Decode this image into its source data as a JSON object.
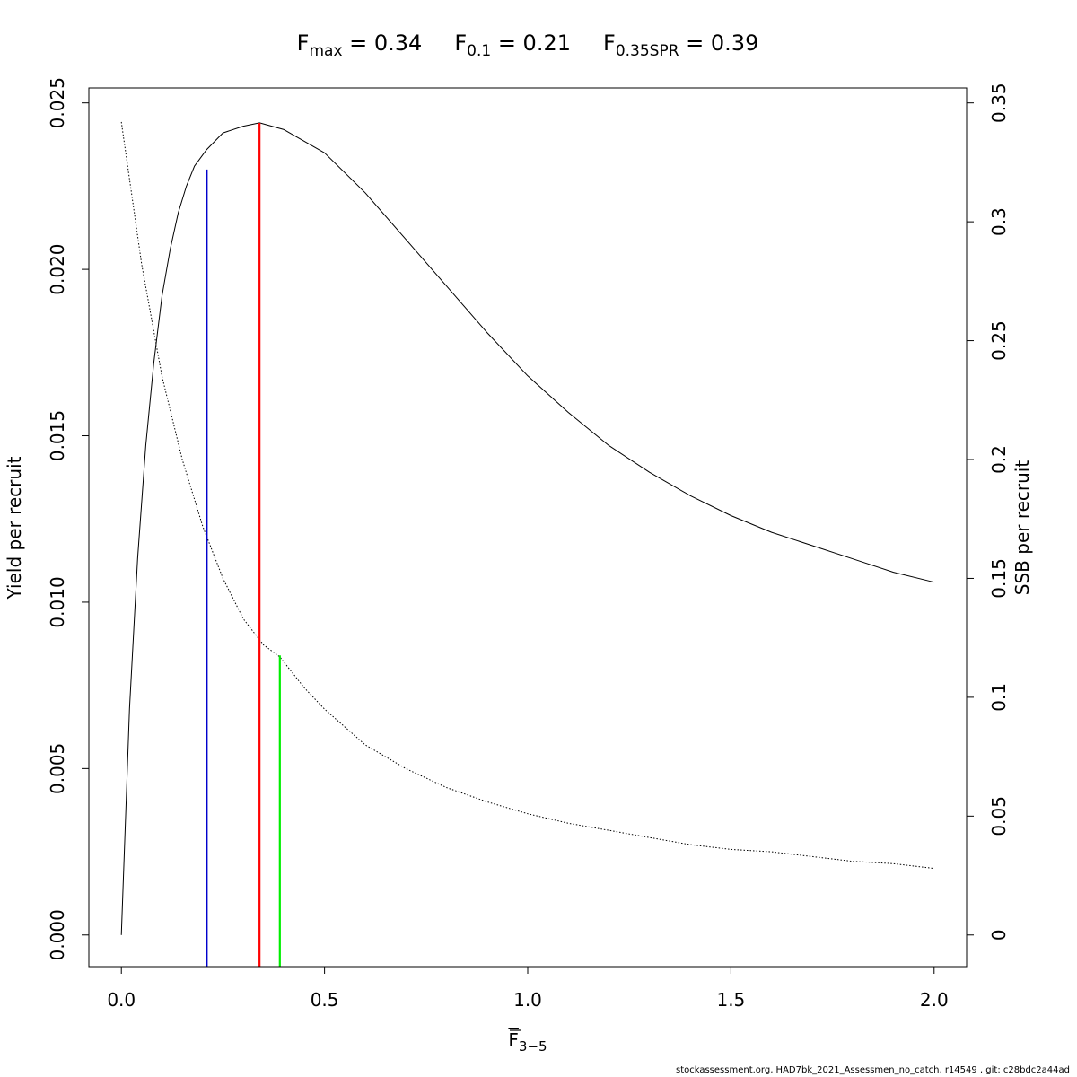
{
  "chart_data": {
    "type": "line",
    "title_parts": [
      {
        "base": "F",
        "sub": "max",
        "rest": " = 0.34"
      },
      {
        "base": "F",
        "sub": "0.1",
        "rest": " = 0.21"
      },
      {
        "base": "F",
        "sub": "0.35SPR",
        "rest": " = 0.39"
      }
    ],
    "xlabel": {
      "base": "F",
      "sub": "3−5"
    },
    "ylabel_left": "Yield per recruit",
    "ylabel_right": "SSB per recruit",
    "xlim": [
      -0.08,
      2.08
    ],
    "ylim_left": [
      -0.00095,
      0.02545
    ],
    "ylim_right": [
      -0.0133,
      0.3563
    ],
    "x_ticks": [
      0,
      0.5,
      1,
      1.5,
      2
    ],
    "x_tick_labels": [
      "0.0",
      "0.5",
      "1.0",
      "1.5",
      "2.0"
    ],
    "y_left_ticks": [
      0,
      0.005,
      0.01,
      0.015,
      0.02,
      0.025
    ],
    "y_left_tick_labels": [
      "0.000",
      "0.005",
      "0.010",
      "0.015",
      "0.020",
      "0.025"
    ],
    "y_right_ticks": [
      0,
      0.05,
      0.1,
      0.15,
      0.2,
      0.25,
      0.3,
      0.35
    ],
    "y_right_tick_labels": [
      "0",
      "0.05",
      "0.1",
      "0.15",
      "0.2",
      "0.25",
      "0.3",
      "0.35"
    ],
    "grid": false,
    "legend": "none",
    "series": [
      {
        "axis": "left",
        "style": "solid",
        "color": "#000000",
        "x": [
          0,
          0.02,
          0.04,
          0.06,
          0.08,
          0.1,
          0.12,
          0.14,
          0.16,
          0.18,
          0.21,
          0.25,
          0.3,
          0.34,
          0.4,
          0.5,
          0.6,
          0.7,
          0.8,
          0.9,
          1.0,
          1.1,
          1.2,
          1.3,
          1.4,
          1.5,
          1.6,
          1.7,
          1.8,
          1.9,
          2.0
        ],
        "y": [
          0.0,
          0.0068,
          0.0113,
          0.0147,
          0.0172,
          0.0192,
          0.0206,
          0.0217,
          0.0225,
          0.0231,
          0.0236,
          0.0241,
          0.0243,
          0.0244,
          0.0242,
          0.0235,
          0.0223,
          0.0209,
          0.0195,
          0.0181,
          0.0168,
          0.0157,
          0.0147,
          0.0139,
          0.0132,
          0.0126,
          0.0121,
          0.0117,
          0.0113,
          0.0109,
          0.0106
        ]
      },
      {
        "axis": "right",
        "style": "dotted",
        "color": "#000000",
        "x": [
          0,
          0.05,
          0.1,
          0.15,
          0.2,
          0.25,
          0.3,
          0.35,
          0.39,
          0.45,
          0.5,
          0.6,
          0.7,
          0.8,
          0.9,
          1.0,
          1.1,
          1.2,
          1.3,
          1.4,
          1.5,
          1.6,
          1.7,
          1.8,
          1.9,
          2.0
        ],
        "y": [
          0.342,
          0.282,
          0.235,
          0.2,
          0.172,
          0.15,
          0.133,
          0.122,
          0.117,
          0.104,
          0.095,
          0.08,
          0.07,
          0.062,
          0.056,
          0.051,
          0.047,
          0.044,
          0.041,
          0.038,
          0.036,
          0.035,
          0.033,
          0.031,
          0.03,
          0.028
        ]
      }
    ],
    "reference_lines": [
      {
        "name": "F0.1",
        "x": 0.21,
        "y_top": 0.023,
        "color": "#0000cc"
      },
      {
        "name": "Fmax",
        "x": 0.34,
        "y_top": 0.0244,
        "color": "#ff0000"
      },
      {
        "name": "F0.35SPR",
        "x": 0.39,
        "y_top": 0.0084,
        "color": "#00ee00"
      }
    ]
  },
  "footer": "stockassessment.org, HAD7bk_2021_Assessmen_no_catch, r14549 , git: c28bdc2a44ad"
}
